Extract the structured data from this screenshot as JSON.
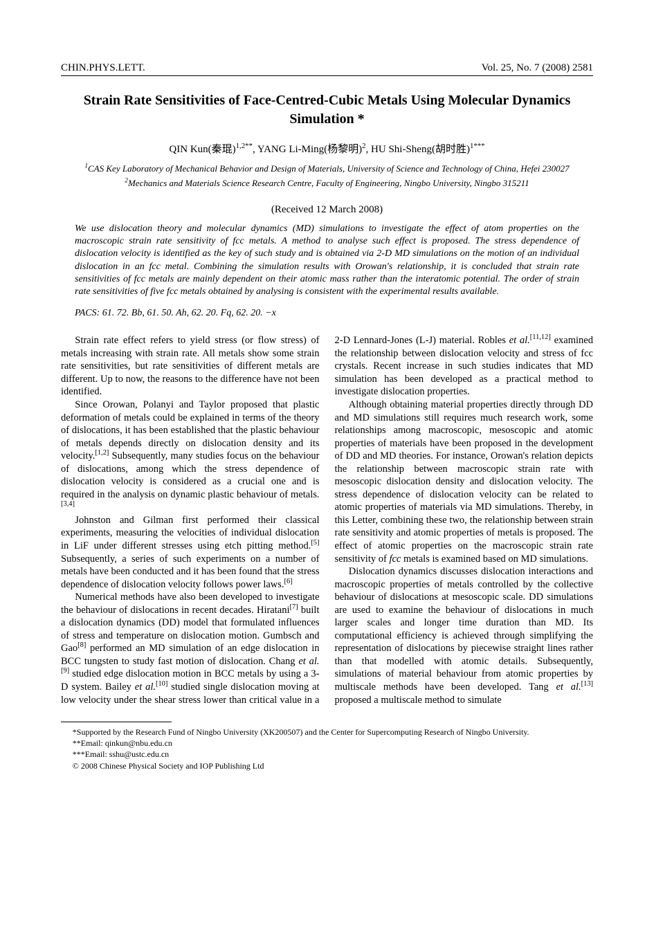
{
  "header": {
    "journal": "CHIN.PHYS.LETT.",
    "volline": "Vol. 25, No. 7 (2008) 2581"
  },
  "title": "Strain Rate Sensitivities of Face-Centred-Cubic Metals Using Molecular Dynamics Simulation *",
  "authors_html": "QIN Kun(秦琨)<sup>1,2**</sup>, YANG Li-Ming(杨黎明)<sup>2</sup>, HU Shi-Sheng(胡时胜)<sup>1***</sup>",
  "affil1_html": "<sup>1</sup>CAS Key Laboratory of Mechanical Behavior and Design of Materials, University of Science and Technology of China, Hefei 230027",
  "affil2_html": "<sup>2</sup>Mechanics and Materials Science Research Centre, Faculty of Engineering, Ningbo University, Ningbo 315211",
  "received": "(Received 12 March 2008)",
  "abstract": "We use dislocation theory and molecular dynamics (MD) simulations to investigate the effect of atom properties on the macroscopic strain rate sensitivity of fcc metals. A method to analyse such effect is proposed. The stress dependence of dislocation velocity is identified as the key of such study and is obtained via 2-D MD simulations on the motion of an individual dislocation in an fcc metal. Combining the simulation results with Orowan's relationship, it is concluded that strain rate sensitivities of fcc metals are mainly dependent on their atomic mass rather than the interatomic potential. The order of strain rate sensitivities of five fcc metals obtained by analysing is consistent with the experimental results available.",
  "pacs": "PACS:  61. 72. Bb, 61. 50. Ah, 62. 20. Fq, 62. 20. −x",
  "body": {
    "p1": "Strain rate effect refers to yield stress (or flow stress) of metals increasing with strain rate. All metals show some strain rate sensitivities, but rate sensitivities of different metals are different. Up to now, the reasons to the difference have not been identified.",
    "p2": "Since Orowan, Polanyi and Taylor proposed that plastic deformation of metals could be explained in terms of the theory of dislocations, it has been established that the plastic behaviour of metals depends directly on dislocation density and its velocity.<sup>[1,2]</sup> Subsequently, many studies focus on the behaviour of dislocations, among which the stress dependence of dislocation velocity is considered as a crucial one and is required in the analysis on dynamic plastic behaviour of metals.<sup>[3,4]</sup>",
    "p3": "Johnston and Gilman first performed their classical experiments, measuring the velocities of individual dislocation in LiF under different stresses using etch pitting method.<sup>[5]</sup> Subsequently, a series of such experiments on a number of metals have been conducted and it has been found that the stress dependence of dislocation velocity follows power laws.<sup>[6]</sup>",
    "p4": "Numerical methods have also been developed to investigate the behaviour of dislocations in recent decades. Hiratani<sup>[7]</sup> built a dislocation dynamics (DD) model that formulated influences of stress and temperature on dislocation motion. Gumbsch and Gao<sup>[8]</sup> performed an MD simulation of an edge dislocation in BCC tungsten to study fast motion of dislocation. Chang <span class=\"italic\">et al.</span><sup>[9]</sup> studied edge dislocation motion in BCC metals by using a 3-D system. Bailey <span class=\"italic\">et al.</span><sup>[10]</sup> studied single dislocation moving at low velocity under the shear stress lower than critical value in a 2-D Lennard-Jones (L-J) material. Robles <span class=\"italic\">et al.</span><sup>[11,12]</sup> examined the relationship between dislocation velocity and stress of fcc crystals. Recent increase in such studies indicates that MD simulation has been developed as a practical method to investigate dislocation properties.",
    "p5": "Although obtaining material properties directly through DD and MD simulations still requires much research work, some relationships among macroscopic, mesoscopic and atomic properties of materials have been proposed in the development of DD and MD theories. For instance, Orowan's relation depicts the relationship between macroscopic strain rate with mesoscopic dislocation density and dislocation velocity. The stress dependence of dislocation velocity can be related to atomic properties of materials via MD simulations. Thereby, in this Letter, combining these two, the relationship between strain rate sensitivity and atomic properties of metals is proposed. The effect of atomic properties on the macroscopic strain rate sensitivity of <span class=\"italic\">fcc</span> metals is examined based on MD simulations.",
    "p6": "Dislocation dynamics discusses dislocation interactions and macroscopic properties of metals controlled by the collective behaviour of dislocations at mesoscopic scale. DD simulations are used to examine the behaviour of dislocations in much larger scales and longer time duration than MD. Its computational efficiency is achieved through simplifying the representation of dislocations by piecewise straight lines rather than that modelled with atomic details. Subsequently, simulations of material behaviour from atomic properties by multiscale methods have been developed. Tang <span class=\"italic\">et al.</span><sup>[13]</sup> proposed a multiscale method to simulate"
  },
  "footnotes": {
    "f1": "*Supported by the Research Fund of Ningbo University (XK200507) and the Center for Supercomputing Research of Ningbo University.",
    "f2": "**Email: qinkun@nbu.edu.cn",
    "f3": "***Email: sshu@ustc.edu.cn",
    "f4": "© 2008 Chinese Physical Society and IOP Publishing Ltd"
  }
}
